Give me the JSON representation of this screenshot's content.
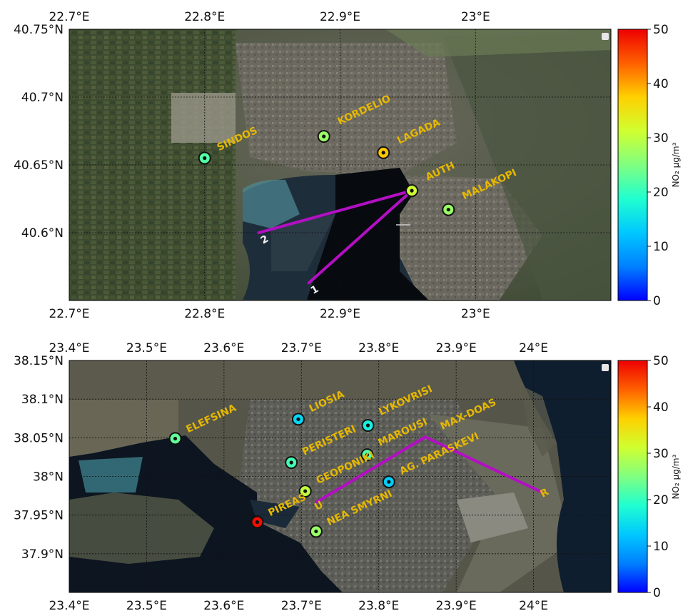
{
  "colorbar": {
    "label": "NO₂ µg/m³",
    "ticks": [
      0,
      10,
      20,
      30,
      40,
      50
    ],
    "range": [
      0,
      50
    ],
    "colormap": "jet"
  },
  "maps": [
    {
      "name": "thessaloniki",
      "lon_range": [
        22.7,
        23.1
      ],
      "lat_range": [
        40.55,
        40.75
      ],
      "lon_ticks": [
        {
          "value": 22.7,
          "label": "22.7°E"
        },
        {
          "value": 22.8,
          "label": "22.8°E"
        },
        {
          "value": 22.9,
          "label": "22.9°E"
        },
        {
          "value": 23.0,
          "label": "23°E"
        }
      ],
      "lat_ticks": [
        {
          "value": 40.75,
          "label": "40.75°N"
        },
        {
          "value": 40.7,
          "label": "40.7°N"
        },
        {
          "value": 40.65,
          "label": "40.65°N"
        },
        {
          "value": 40.6,
          "label": "40.6°N"
        }
      ],
      "stations": [
        {
          "name": "SINDOS",
          "lon": 22.8,
          "lat": 40.655,
          "no2": 22
        },
        {
          "name": "KORDELIO",
          "lon": 22.888,
          "lat": 40.671,
          "no2": 27
        },
        {
          "name": "LAGADA",
          "lon": 22.932,
          "lat": 40.659,
          "no2": 38
        },
        {
          "name": "AUTH",
          "lon": 22.953,
          "lat": 40.631,
          "no2": 31
        },
        {
          "name": "MALAKOPI",
          "lon": 22.98,
          "lat": 40.617,
          "no2": 27
        }
      ],
      "lines": [
        {
          "label": "1",
          "points": [
            [
              22.877,
              40.563
            ],
            [
              22.953,
              40.631
            ]
          ]
        },
        {
          "label": "2",
          "points": [
            [
              22.84,
              40.6
            ],
            [
              22.953,
              40.631
            ]
          ]
        }
      ]
    },
    {
      "name": "athens",
      "lon_range": [
        23.4,
        24.1
      ],
      "lat_range": [
        37.85,
        38.15
      ],
      "lon_ticks": [
        {
          "value": 23.4,
          "label": "23.4°E"
        },
        {
          "value": 23.5,
          "label": "23.5°E"
        },
        {
          "value": 23.6,
          "label": "23.6°E"
        },
        {
          "value": 23.7,
          "label": "23.7°E"
        },
        {
          "value": 23.8,
          "label": "23.8°E"
        },
        {
          "value": 23.9,
          "label": "23.9°E"
        },
        {
          "value": 24.0,
          "label": "24°E"
        }
      ],
      "lat_ticks": [
        {
          "value": 38.15,
          "label": "38.15°N"
        },
        {
          "value": 38.1,
          "label": "38.1°N"
        },
        {
          "value": 38.05,
          "label": "38.05°N"
        },
        {
          "value": 38.0,
          "label": "38°N"
        },
        {
          "value": 37.95,
          "label": "37.95°N"
        },
        {
          "value": 37.9,
          "label": "37.9°N"
        }
      ],
      "stations": [
        {
          "name": "ELEFSINA",
          "lon": 23.537,
          "lat": 38.049,
          "no2": 23
        },
        {
          "name": "LIOSIA",
          "lon": 23.696,
          "lat": 38.074,
          "no2": 14
        },
        {
          "name": "LYKOVRISI",
          "lon": 23.786,
          "lat": 38.066,
          "no2": 17
        },
        {
          "name": "PERISTERI",
          "lon": 23.687,
          "lat": 38.018,
          "no2": 21
        },
        {
          "name": "MAROUSI",
          "lon": 23.785,
          "lat": 38.028,
          "no2": 22
        },
        {
          "name": "AG. PARASKEVI",
          "lon": 23.813,
          "lat": 37.993,
          "no2": 13
        },
        {
          "name": "GEOPONIKI",
          "lon": 23.705,
          "lat": 37.981,
          "no2": 30
        },
        {
          "name": "PIREAS",
          "lon": 23.643,
          "lat": 37.941,
          "no2": 49
        },
        {
          "name": "NEA SMYRNI",
          "lon": 23.719,
          "lat": 37.929,
          "no2": 27
        },
        {
          "name": "MAX-DOAS",
          "lon": 23.86,
          "lat": 38.051,
          "no2": null
        }
      ],
      "lines": [
        {
          "label": "U",
          "points": [
            [
              23.72,
              37.967
            ],
            [
              23.86,
              38.051
            ]
          ]
        },
        {
          "label": "R",
          "points": [
            [
              23.86,
              38.051
            ],
            [
              24.01,
              37.98
            ]
          ]
        }
      ]
    }
  ]
}
